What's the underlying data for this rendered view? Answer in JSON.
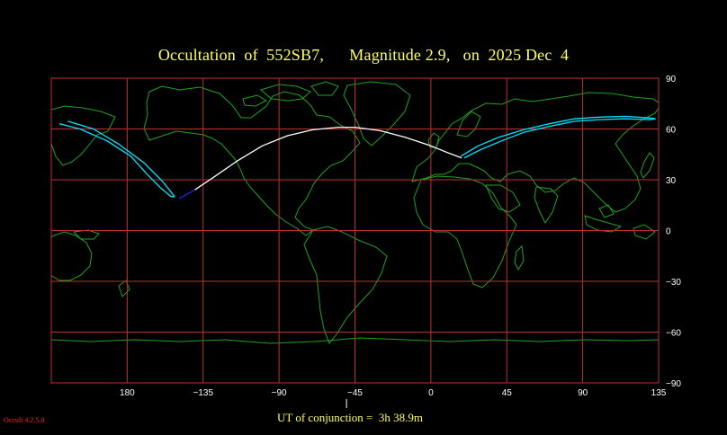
{
  "title": "Occultation  of  552SB7,      Magnitude 2.9,   on  2025 Dec  4",
  "footer": {
    "ut_label": "UT of conjunction =  3h 38.9m",
    "version": "Occult 4.2.5.0"
  },
  "axes": {
    "longitude_ticks": [
      {
        "lon": 135,
        "label": "135"
      },
      {
        "lon": 180,
        "label": "180"
      },
      {
        "lon": -135,
        "label": "−135"
      },
      {
        "lon": -90,
        "label": "−90"
      },
      {
        "lon": -45,
        "label": "−45"
      },
      {
        "lon": 0,
        "label": "0"
      },
      {
        "lon": 45,
        "label": "45"
      },
      {
        "lon": 90,
        "label": "90"
      }
    ],
    "latitude_ticks": [
      {
        "lat": 90,
        "label": "90"
      },
      {
        "lat": 60,
        "label": "60"
      },
      {
        "lat": 30,
        "label": "30"
      },
      {
        "lat": 0,
        "label": "0"
      },
      {
        "lat": -30,
        "label": "−30"
      },
      {
        "lat": -60,
        "label": "−60"
      },
      {
        "lat": -90,
        "label": "−90"
      }
    ],
    "central_meridian": -45,
    "conjunction_lon": -50
  },
  "colors": {
    "background": "#000000",
    "grid": "#c03030",
    "coastline": "#1fa31f",
    "path_daylight": "#ffffff",
    "path_limits": "#00e5ff",
    "path_twilight": "#2222ee",
    "title": "#ffff66",
    "labels": "#ffffff",
    "version": "#ff2020"
  },
  "occultation_path": {
    "central_line": [
      [
        -140,
        24
      ],
      [
        -128,
        32
      ],
      [
        -115,
        41
      ],
      [
        -100,
        50
      ],
      [
        -85,
        56
      ],
      [
        -70,
        59.5
      ],
      [
        -55,
        61
      ],
      [
        -45,
        61
      ],
      [
        -30,
        59
      ],
      [
        -15,
        55
      ],
      [
        0,
        50
      ],
      [
        10,
        46
      ],
      [
        18,
        43
      ]
    ],
    "twilight_segment": [
      [
        -149,
        19
      ],
      [
        -140,
        24
      ]
    ],
    "outer_limit_west": [
      [
        133,
        65.5
      ],
      [
        145,
        64.5
      ],
      [
        160,
        60
      ],
      [
        175,
        51
      ],
      [
        -170,
        40
      ],
      [
        -160,
        30
      ],
      [
        -155,
        24
      ],
      [
        -152,
        20
      ],
      [
        -154,
        20
      ],
      [
        -160,
        25
      ],
      [
        -168,
        33
      ],
      [
        -178,
        44
      ],
      [
        168,
        53
      ],
      [
        152,
        60
      ],
      [
        140,
        63
      ],
      [
        133,
        64
      ]
    ],
    "outer_limit_east": [
      [
        18,
        44
      ],
      [
        28,
        50
      ],
      [
        40,
        55
      ],
      [
        55,
        59.5
      ],
      [
        70,
        63
      ],
      [
        85,
        66
      ],
      [
        100,
        67
      ],
      [
        115,
        67.5
      ],
      [
        130,
        66.5
      ],
      [
        133,
        66
      ],
      [
        130,
        65.5
      ],
      [
        115,
        66
      ],
      [
        100,
        65.5
      ],
      [
        85,
        64.5
      ],
      [
        70,
        61.5
      ],
      [
        55,
        58
      ],
      [
        42,
        53
      ],
      [
        30,
        48
      ],
      [
        20,
        43
      ]
    ]
  }
}
